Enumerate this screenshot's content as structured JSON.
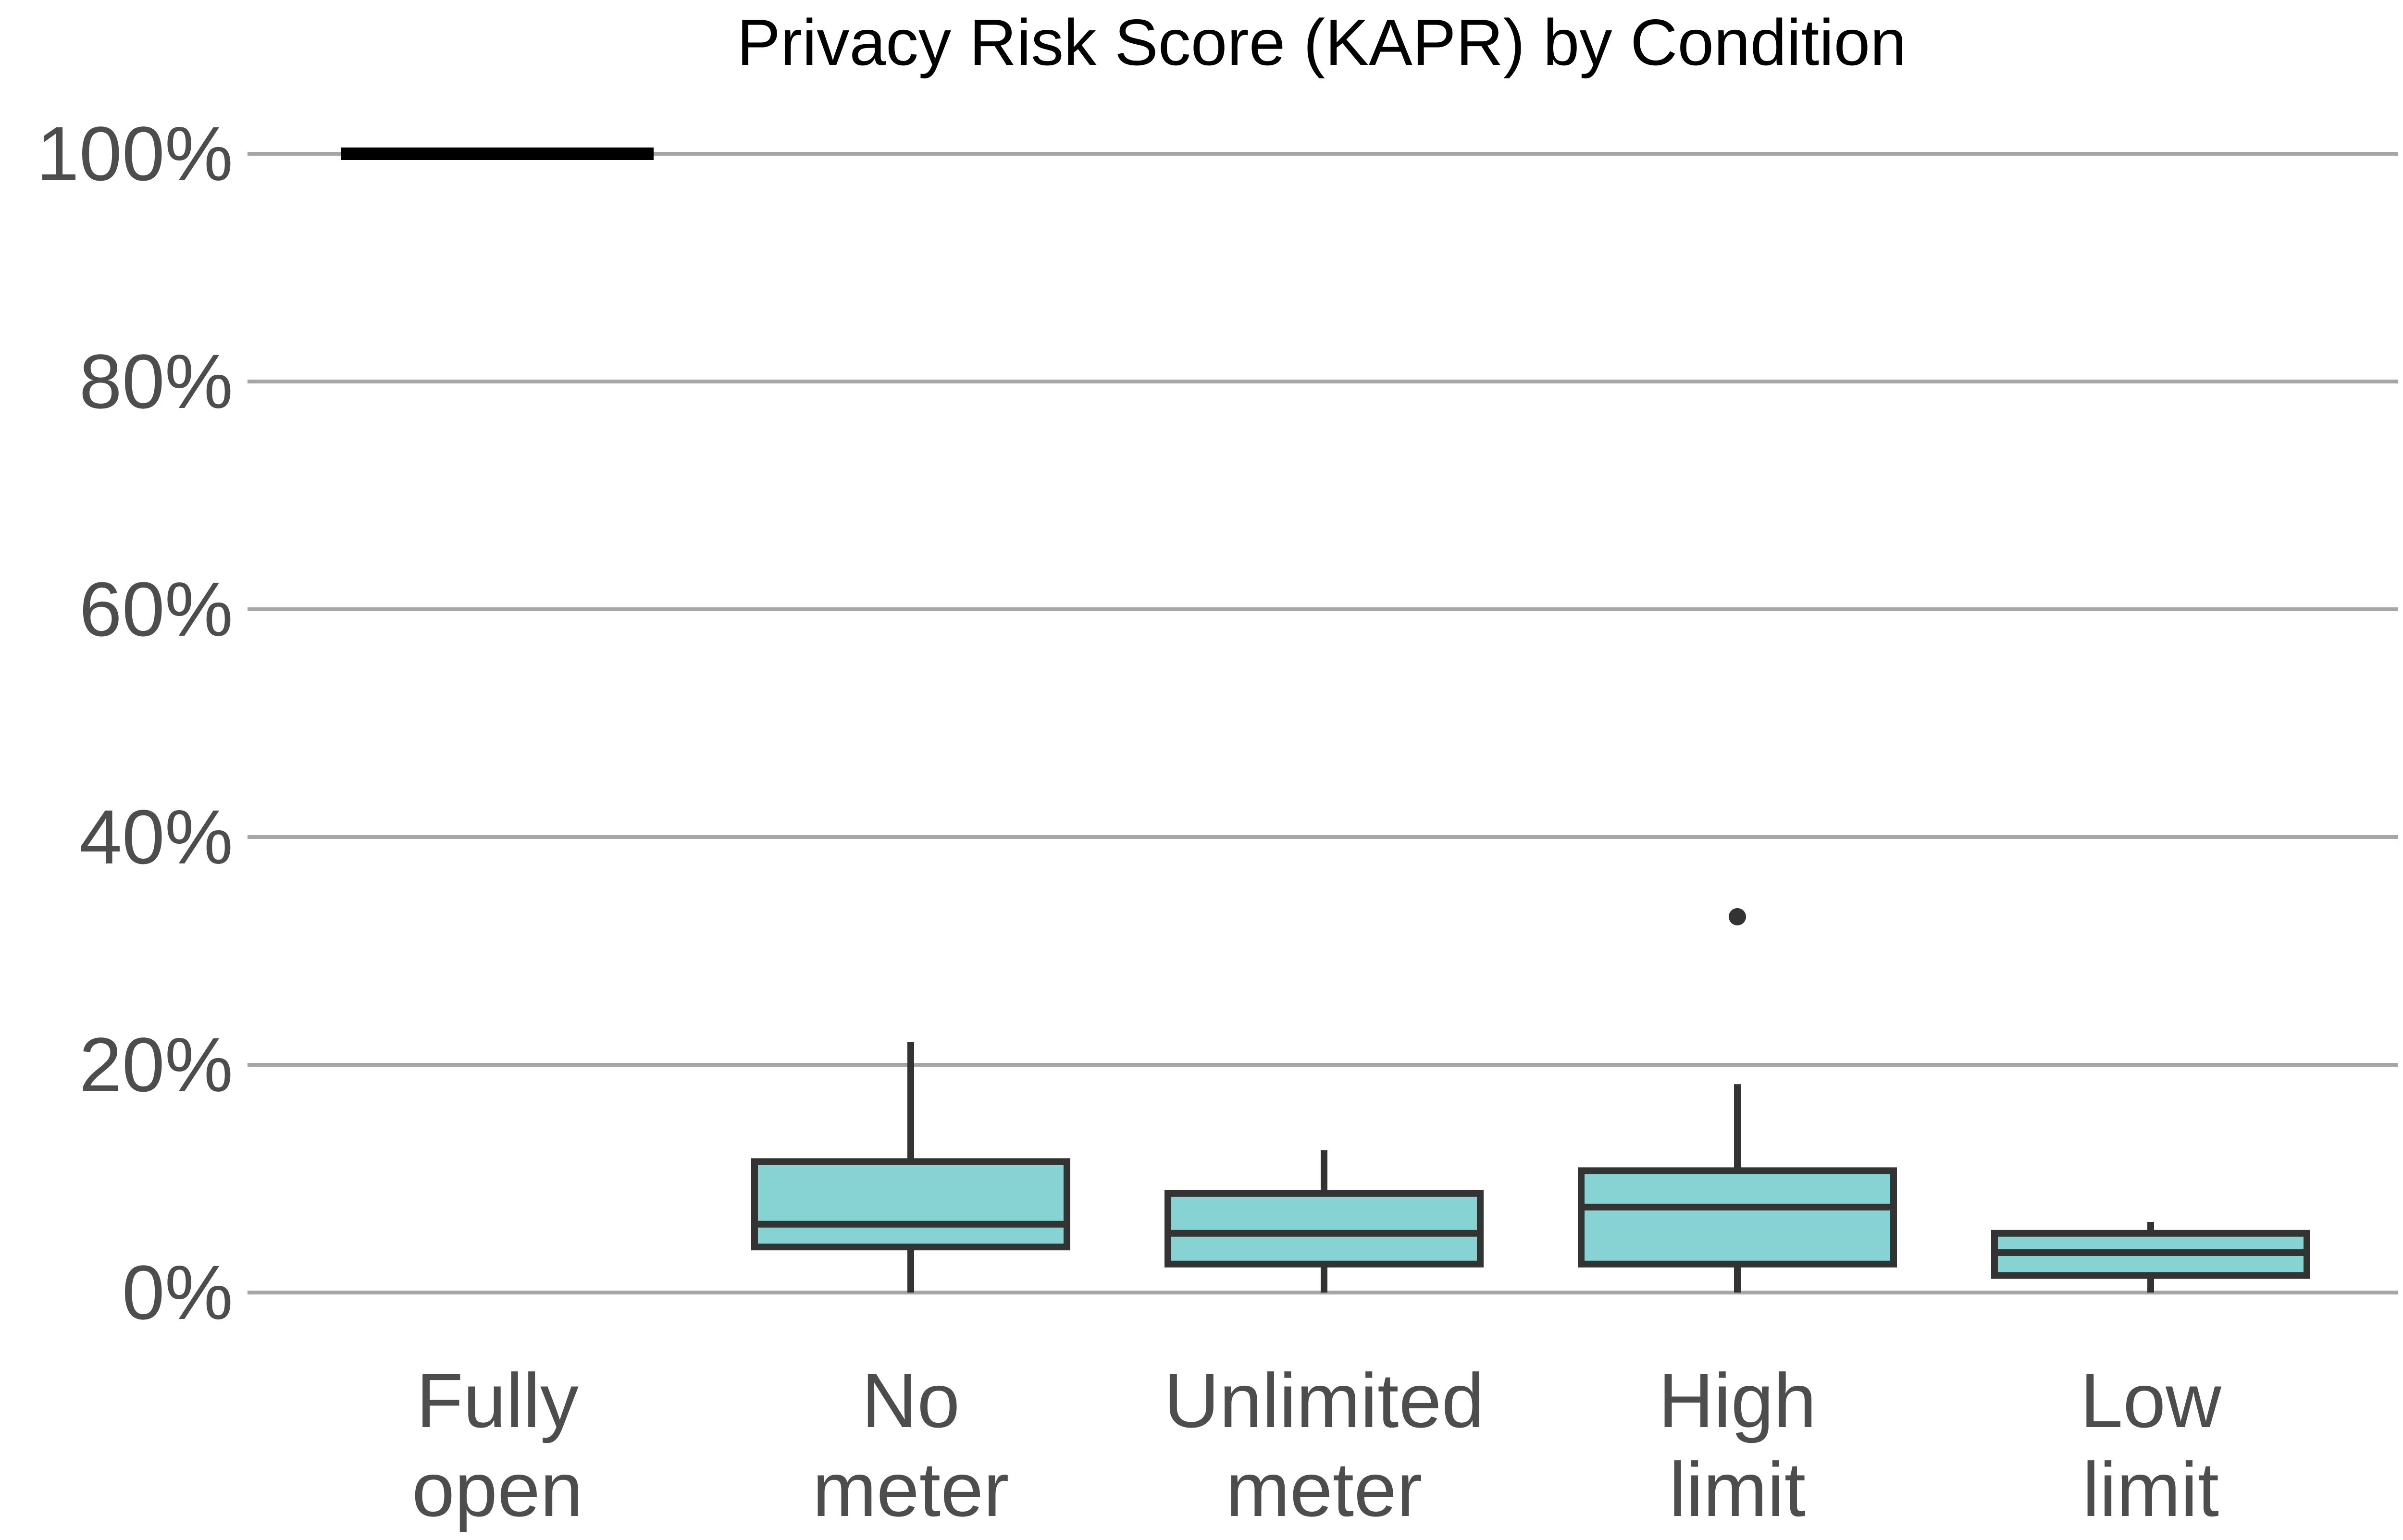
{
  "chart_data": {
    "type": "box",
    "title": "Privacy Risk Score (KAPR) by Condition",
    "xlabel": "",
    "ylabel": "",
    "ylim": [
      0,
      100
    ],
    "yticks": [
      0,
      20,
      40,
      60,
      80,
      100
    ],
    "ytick_labels": [
      "0%",
      "20%",
      "40%",
      "60%",
      "80%",
      "100%"
    ],
    "grid": "horizontal",
    "legend": "none",
    "categories": [
      {
        "label_lines": [
          "Fully",
          "open"
        ],
        "constant": 100
      },
      {
        "label_lines": [
          "No",
          "meter"
        ],
        "min": 0,
        "q1": 4,
        "median": 6,
        "q3": 11.5,
        "max": 22,
        "outliers": []
      },
      {
        "label_lines": [
          "Unlimited",
          "meter"
        ],
        "min": 0,
        "q1": 2.5,
        "median": 5.2,
        "q3": 8.7,
        "max": 12.5,
        "outliers": []
      },
      {
        "label_lines": [
          "High",
          "limit"
        ],
        "min": 0,
        "q1": 2.5,
        "median": 7.5,
        "q3": 10.7,
        "max": 18.3,
        "outliers": [
          33
        ]
      },
      {
        "label_lines": [
          "Low",
          "limit"
        ],
        "min": 0,
        "q1": 1.5,
        "median": 3.5,
        "q3": 5.2,
        "max": 6.2,
        "outliers": []
      }
    ],
    "colors": {
      "box_fill": "#87d2d2",
      "box_stroke": "#333333",
      "grid": "#a6a6a6",
      "constant_line": "#000000",
      "tick_text": "#4d4d4d",
      "title_text": "#000000"
    }
  }
}
